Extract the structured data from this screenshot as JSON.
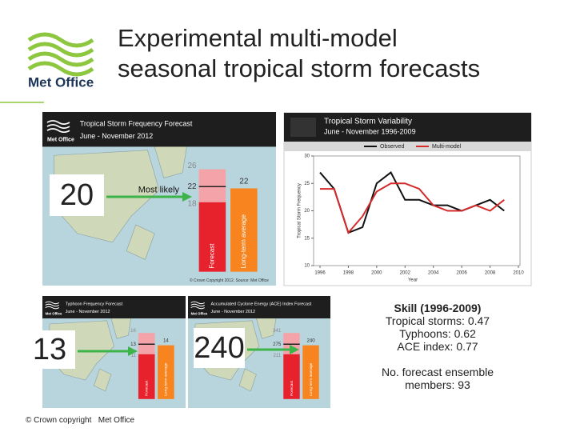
{
  "header": {
    "title_lines": [
      "Experimental multi-model",
      "seasonal tropical storm forecasts"
    ],
    "logo": "Met Office"
  },
  "storm_forecast": {
    "title": "Tropical Storm Frequency Forecast",
    "period": "June - November 2012",
    "logo": "Met Office",
    "headline": "20",
    "most_likely": "Most likely",
    "bar_labels": [
      "26",
      "22",
      "18",
      "22"
    ],
    "forecast_label": "Forecast",
    "average_label": "Long-term average",
    "credit": "© Crown Copyright 2012. Source: Met Office"
  },
  "variability": {
    "title": "Tropical Storm Variability",
    "period": "June - November 1996-2009",
    "y_label": "Tropical Storm Frequency",
    "x_label": "Year",
    "x": [
      1996,
      1997,
      1998,
      1999,
      2000,
      2001,
      2002,
      2003,
      2004,
      2005,
      2006,
      2007,
      2008,
      2009
    ],
    "series": [
      {
        "name": "Observed",
        "color": "#111111",
        "values": [
          27,
          24,
          16,
          17,
          25,
          27,
          22,
          22,
          21,
          21,
          20,
          21,
          22,
          20
        ]
      },
      {
        "name": "Multi-model",
        "color": "#d42a2a",
        "values": [
          24,
          24,
          16,
          19,
          23.5,
          25,
          25,
          24,
          21,
          20,
          20,
          21,
          20,
          22
        ]
      }
    ],
    "xlim": [
      1996,
      2010
    ],
    "ylim": [
      10,
      30
    ],
    "xticks": [
      1996,
      1998,
      2000,
      2002,
      2004,
      2006,
      2008,
      2010
    ],
    "yticks": [
      10,
      15,
      20,
      25,
      30
    ]
  },
  "typhoon_forecast": {
    "title": "Typhoon Frequency Forecast",
    "period": "June - November 2012",
    "logo": "Met Office",
    "headline": "13",
    "bar_labels": [
      "16",
      "13",
      "11",
      "14"
    ],
    "forecast_label": "Forecast",
    "average_label": "Long-term average"
  },
  "ace_forecast": {
    "title": "Accumulated Cyclone Energy (ACE) Index Forecast",
    "period": "June - November 2012",
    "logo": "Met Office",
    "headline": "240",
    "bar_labels": [
      "341",
      "275",
      "211",
      "240"
    ],
    "forecast_label": "Forecast",
    "average_label": "Long-term average"
  },
  "skill": {
    "heading": "Skill (1996-2009)",
    "lines": [
      "Tropical storms: 0.47",
      "Typhoons: 0.62",
      "ACE index: 0.77"
    ],
    "ensemble": "No. forecast ensemble members: 93"
  },
  "footer": "© Crown copyright   Met Office"
}
